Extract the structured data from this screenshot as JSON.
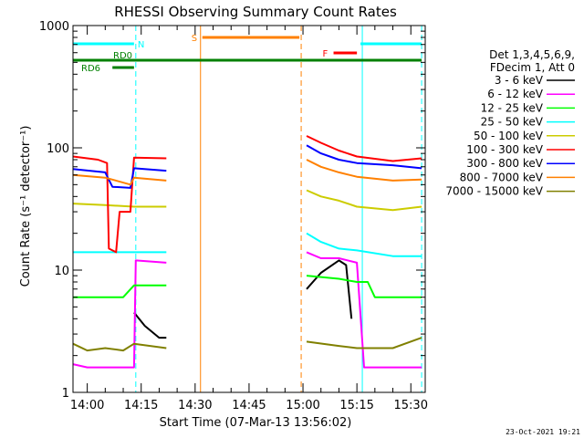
{
  "chart_data": {
    "type": "line",
    "title": "RHESSI Observing Summary Count Rates",
    "xlabel": "Start Time (07-Mar-13 13:56:02)",
    "ylabel": "Count Rate (s⁻¹ detector⁻¹)",
    "yscale": "log",
    "ylim": [
      1,
      1000
    ],
    "xlim": [
      "13:56:02",
      "15:34:00"
    ],
    "x_ticks": [
      "14:00",
      "14:15",
      "14:30",
      "14:45",
      "15:00",
      "15:15",
      "15:30"
    ],
    "y_ticks": [
      "1",
      "10",
      "100",
      "1000"
    ],
    "grid": false,
    "legend_position": "right",
    "legend_header": [
      "Det 1,3,4,5,6,9,",
      "FDecim 1, Att 0"
    ],
    "timestamp": "23-Oct-2021 19:21",
    "series": [
      {
        "name": "3 - 6 keV",
        "color": "#000000",
        "points": [
          [
            "13:56:02",
            null
          ],
          [
            "14:12:40",
            null
          ],
          [
            "14:13:00",
            4.5
          ],
          [
            "14:16:00",
            3.5
          ],
          [
            "14:20:00",
            2.8
          ],
          [
            "14:22:00",
            2.8
          ],
          [
            "15:00:30",
            null
          ],
          [
            "15:01:00",
            7.0
          ],
          [
            "15:05:00",
            9.5
          ],
          [
            "15:10:00",
            12.0
          ],
          [
            "15:12:00",
            11.0
          ],
          [
            "15:13:30",
            4.0
          ],
          [
            "15:14:00",
            null
          ]
        ]
      },
      {
        "name": "6 - 12 keV",
        "color": "#ff00ff",
        "points": [
          [
            "13:56:02",
            1.7
          ],
          [
            "14:00:00",
            1.6
          ],
          [
            "14:05:00",
            1.6
          ],
          [
            "14:10:00",
            1.6
          ],
          [
            "14:13:00",
            1.6
          ],
          [
            "14:13:30",
            12.0
          ],
          [
            "14:22:00",
            11.5
          ],
          [
            "15:00:30",
            null
          ],
          [
            "15:01:00",
            14.0
          ],
          [
            "15:05:00",
            12.5
          ],
          [
            "15:10:00",
            12.5
          ],
          [
            "15:15:00",
            11.5
          ],
          [
            "15:17:00",
            1.6
          ],
          [
            "15:25:00",
            1.6
          ],
          [
            "15:33:00",
            1.6
          ]
        ]
      },
      {
        "name": "12 - 25 keV",
        "color": "#00ff00",
        "points": [
          [
            "13:56:02",
            6.0
          ],
          [
            "14:00:00",
            6.0
          ],
          [
            "14:05:00",
            6.0
          ],
          [
            "14:10:00",
            6.0
          ],
          [
            "14:13:00",
            7.5
          ],
          [
            "14:22:00",
            7.5
          ],
          [
            "15:00:30",
            null
          ],
          [
            "15:01:00",
            9.0
          ],
          [
            "15:10:00",
            8.5
          ],
          [
            "15:15:00",
            8.0
          ],
          [
            "15:18:00",
            8.0
          ],
          [
            "15:20:00",
            6.0
          ],
          [
            "15:33:00",
            6.0
          ]
        ]
      },
      {
        "name": "25 - 50 keV",
        "color": "#00ffff",
        "points": [
          [
            "13:56:02",
            14.0
          ],
          [
            "14:05:00",
            14.0
          ],
          [
            "14:13:00",
            14.0
          ],
          [
            "14:22:00",
            14.0
          ],
          [
            "15:00:30",
            null
          ],
          [
            "15:01:00",
            20.0
          ],
          [
            "15:05:00",
            17.0
          ],
          [
            "15:10:00",
            15.0
          ],
          [
            "15:15:00",
            14.5
          ],
          [
            "15:25:00",
            13.0
          ],
          [
            "15:33:00",
            13.0
          ]
        ]
      },
      {
        "name": "50 - 100 keV",
        "color": "#cccc00",
        "points": [
          [
            "13:56:02",
            35.0
          ],
          [
            "14:05:00",
            34.0
          ],
          [
            "14:13:00",
            33.0
          ],
          [
            "14:22:00",
            33.0
          ],
          [
            "15:00:30",
            null
          ],
          [
            "15:01:00",
            45.0
          ],
          [
            "15:05:00",
            40.0
          ],
          [
            "15:10:00",
            37.0
          ],
          [
            "15:15:00",
            33.0
          ],
          [
            "15:25:00",
            31.0
          ],
          [
            "15:33:00",
            33.0
          ]
        ]
      },
      {
        "name": "100 - 300 keV",
        "color": "#ff0000",
        "points": [
          [
            "13:56:02",
            85.0
          ],
          [
            "14:03:00",
            80.0
          ],
          [
            "14:05:30",
            75.0
          ],
          [
            "14:06:00",
            15.0
          ],
          [
            "14:08:00",
            14.0
          ],
          [
            "14:09:00",
            30.0
          ],
          [
            "14:12:00",
            30.0
          ],
          [
            "14:13:00",
            83.0
          ],
          [
            "14:22:00",
            82.0
          ],
          [
            "15:00:30",
            null
          ],
          [
            "15:01:00",
            125.0
          ],
          [
            "15:05:00",
            110.0
          ],
          [
            "15:10:00",
            95.0
          ],
          [
            "15:15:00",
            85.0
          ],
          [
            "15:25:00",
            78.0
          ],
          [
            "15:33:00",
            82.0
          ]
        ]
      },
      {
        "name": "300 - 800 keV",
        "color": "#0000ff",
        "points": [
          [
            "13:56:02",
            67.0
          ],
          [
            "14:05:00",
            63.0
          ],
          [
            "14:07:00",
            48.0
          ],
          [
            "14:12:00",
            47.0
          ],
          [
            "14:13:00",
            68.0
          ],
          [
            "14:22:00",
            65.0
          ],
          [
            "15:00:30",
            null
          ],
          [
            "15:01:00",
            105.0
          ],
          [
            "15:05:00",
            90.0
          ],
          [
            "15:10:00",
            80.0
          ],
          [
            "15:15:00",
            75.0
          ],
          [
            "15:25:00",
            72.0
          ],
          [
            "15:33:00",
            68.0
          ]
        ]
      },
      {
        "name": "800 - 7000 keV",
        "color": "#ff8000",
        "points": [
          [
            "13:56:02",
            60.0
          ],
          [
            "14:05:00",
            57.0
          ],
          [
            "14:07:00",
            55.0
          ],
          [
            "14:12:00",
            50.0
          ],
          [
            "14:13:00",
            57.0
          ],
          [
            "14:22:00",
            54.0
          ],
          [
            "15:00:30",
            null
          ],
          [
            "15:01:00",
            80.0
          ],
          [
            "15:05:00",
            70.0
          ],
          [
            "15:10:00",
            63.0
          ],
          [
            "15:15:00",
            58.0
          ],
          [
            "15:25:00",
            54.0
          ],
          [
            "15:33:00",
            55.0
          ]
        ]
      },
      {
        "name": "7000 - 15000 keV",
        "color": "#808000",
        "points": [
          [
            "13:56:02",
            2.5
          ],
          [
            "14:00:00",
            2.2
          ],
          [
            "14:05:00",
            2.3
          ],
          [
            "14:10:00",
            2.2
          ],
          [
            "14:13:00",
            2.5
          ],
          [
            "14:22:00",
            2.3
          ],
          [
            "15:00:30",
            null
          ],
          [
            "15:01:00",
            2.6
          ],
          [
            "15:10:00",
            2.4
          ],
          [
            "15:15:00",
            2.3
          ],
          [
            "15:25:00",
            2.3
          ],
          [
            "15:33:00",
            2.8
          ]
        ]
      }
    ],
    "state_bars": [
      {
        "label": "N",
        "color": "#00ffff",
        "segments": [
          [
            "13:56:02",
            "14:13:00"
          ],
          [
            "15:16:00",
            "15:33:00"
          ]
        ]
      },
      {
        "label": "S",
        "color": "#ff8000",
        "segments": [
          [
            "14:32:00",
            "14:59:00"
          ]
        ]
      },
      {
        "label": "F",
        "color": "#ff0000",
        "segments": [
          [
            "15:08:30",
            "15:15:00"
          ]
        ]
      },
      {
        "label": "RD0",
        "color": "#008000",
        "segments": [
          [
            "13:56:02",
            "15:33:00"
          ]
        ]
      },
      {
        "label": "RD6",
        "color": "#008000",
        "segments": [
          [
            "14:07:00",
            "14:13:00"
          ]
        ]
      }
    ],
    "vertical_markers": [
      {
        "time": "13:56:02",
        "color": "#00ffff",
        "style": "solid"
      },
      {
        "time": "14:13:30",
        "color": "#00ffff",
        "style": "dashed"
      },
      {
        "time": "14:31:30",
        "color": "#ff8000",
        "style": "solid"
      },
      {
        "time": "14:59:30",
        "color": "#ff8000",
        "style": "dashed"
      },
      {
        "time": "15:16:30",
        "color": "#00ffff",
        "style": "solid"
      },
      {
        "time": "15:33:00",
        "color": "#00ffff",
        "style": "dashed"
      }
    ]
  }
}
